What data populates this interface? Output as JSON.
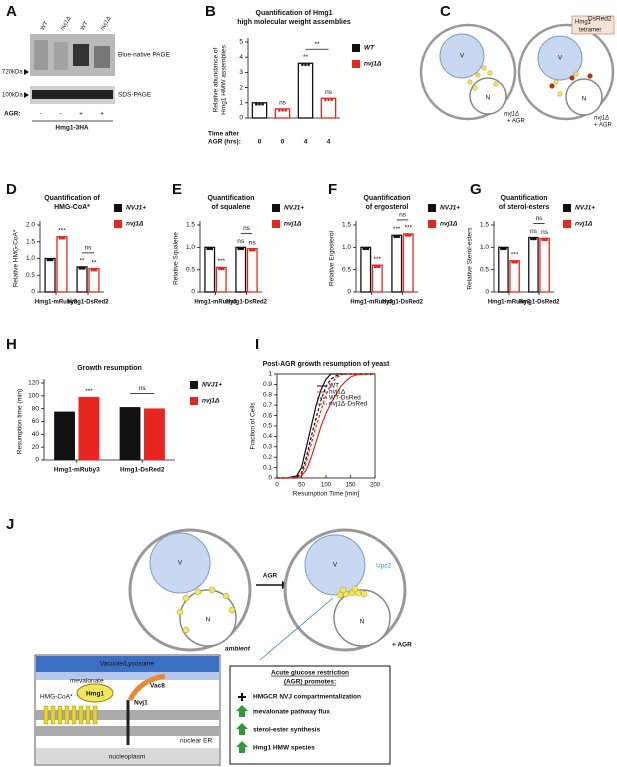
{
  "panels": [
    "A",
    "B",
    "C",
    "D",
    "E",
    "F",
    "G",
    "H",
    "I",
    "J"
  ],
  "blot": {
    "lanes": [
      "WT",
      "nvj1Δ",
      "WT",
      "nvj1Δ"
    ],
    "gels": [
      "Blue-native PAGE",
      "SDS-PAGE"
    ],
    "markers": [
      "720kDa",
      "100kDa"
    ],
    "agr_label": "AGR:",
    "agr": [
      "-",
      "-",
      "+",
      "+"
    ],
    "construct": "Hmg1-3HA"
  },
  "diagram_c": {
    "left": {
      "vacuole": "V",
      "nucleus": "N",
      "strain": "nvj1Δ",
      "condition": "+ AGR"
    },
    "right": {
      "vacuole": "V",
      "nucleus": "N",
      "callout": {
        "name": "Hmg1",
        "superscript": "DsRed2",
        "line2": "tetramer"
      },
      "strain": "nvj1Δ",
      "condition": "+ AGR"
    }
  },
  "diagram_j": {
    "left": {
      "vacuole": "V",
      "nucleus": "N",
      "label": "ambient"
    },
    "arrow": "AGR",
    "right": {
      "vacuole": "V",
      "nucleus": "N",
      "upc2": "Upc2",
      "condition": "+ AGR"
    },
    "inset": {
      "top": "Vacuole/Lysosome",
      "mevalonate": "mevalonate",
      "hmgcoa": "HMG-CoA*",
      "hmg1": "Hmg1",
      "vac8": "Vac8",
      "nvj1": "Nvj1",
      "er": "nuclear ER",
      "nucleoplasm": "nucleoplasm"
    },
    "box": {
      "title": [
        "Acute glucose restriction",
        "(AGR) promotes:"
      ],
      "items": [
        "HMGCR NVJ compartmentalization",
        "mevalonate pathway flux",
        "sterol-ester synthesis",
        "Hmg1 HMW species"
      ]
    }
  },
  "chart_data": [
    {
      "type": "bar",
      "bar_style": "outline",
      "title": [
        "Quantification of Hmg1",
        "high molecular weight assemblies"
      ],
      "ylabel": [
        "Relative abundance of",
        "Hmg1 HMW assemblies"
      ],
      "xlabel": [
        "Time after",
        "AGR (hrs):"
      ],
      "categories": [
        "0",
        "0",
        "4",
        "4"
      ],
      "series": [
        {
          "name": "WT",
          "color": "#111111",
          "values": [
            1.0,
            null,
            3.6,
            null
          ]
        },
        {
          "name": "nvj1Δ",
          "color": "#e8251f",
          "values": [
            null,
            0.6,
            null,
            1.3
          ]
        }
      ],
      "ylim": [
        0,
        5
      ],
      "yticks": [
        0,
        1,
        2,
        3,
        4,
        5
      ],
      "annotations": [
        "ns",
        "**",
        "ns",
        "**"
      ]
    },
    {
      "type": "bar",
      "bar_style": "outline",
      "title": [
        "Quantification of",
        "HMG-CoA*"
      ],
      "ylabel": [
        "Relative HMG-CoA*"
      ],
      "categories": [
        "Hmg1-mRuby3",
        "Hmg1-DsRed2"
      ],
      "series": [
        {
          "name": "NVJ1+",
          "color": "#111111",
          "values": [
            1.0,
            0.75
          ]
        },
        {
          "name": "nvj1Δ",
          "color": "#e8251f",
          "values": [
            1.65,
            0.7
          ]
        }
      ],
      "ylim": [
        0,
        2
      ],
      "yticks": [
        0,
        0.5,
        {
          "value": 1,
          "label": "1.0"
        },
        1.5,
        {
          "value": 2,
          "label": "2.0"
        }
      ],
      "annotations": [
        "***",
        "**",
        "**",
        "ns"
      ]
    },
    {
      "type": "bar",
      "bar_style": "outline",
      "title": [
        "Quantification",
        "of squalene"
      ],
      "ylabel": [
        "Relative Squalene"
      ],
      "categories": [
        "Hmg1-mRuby3",
        "Hmg1-DsRed2"
      ],
      "series": [
        {
          "name": "NVJ1+",
          "color": "#111111",
          "values": [
            1.0,
            1.0
          ]
        },
        {
          "name": "nvj1Δ",
          "color": "#e8251f",
          "values": [
            0.55,
            0.97
          ]
        }
      ],
      "ylim": [
        0,
        1.5
      ],
      "yticks": [
        0,
        0.5,
        {
          "value": 1,
          "label": "1.0"
        },
        1.5
      ],
      "annotations": [
        "***",
        "ns",
        "ns",
        "ns"
      ]
    },
    {
      "type": "bar",
      "bar_style": "outline",
      "title": [
        "Quantification",
        "of ergosterol"
      ],
      "ylabel": [
        "Relative Ergosterol"
      ],
      "categories": [
        "Hmg1-mRuby3",
        "Hmg1-DsRed2"
      ],
      "series": [
        {
          "name": "NVJ1+",
          "color": "#111111",
          "values": [
            1.0,
            1.27
          ]
        },
        {
          "name": "nvj1Δ",
          "color": "#e8251f",
          "values": [
            0.6,
            1.3
          ]
        }
      ],
      "ylim": [
        0,
        1.5
      ],
      "yticks": [
        0,
        0.5,
        {
          "value": 1,
          "label": "1.0"
        },
        1.5
      ],
      "annotations": [
        "***",
        "***",
        "***",
        "ns"
      ]
    },
    {
      "type": "bar",
      "bar_style": "outline",
      "title": [
        "Quantification",
        "of sterol-esters"
      ],
      "ylabel": [
        "Relative Sterol-esters"
      ],
      "categories": [
        "Hmg1-mRuby3",
        "Hmg1-DsRed2"
      ],
      "series": [
        {
          "name": "NVJ1+",
          "color": "#111111",
          "values": [
            1.0,
            1.22
          ]
        },
        {
          "name": "nvj1Δ",
          "color": "#e8251f",
          "values": [
            0.7,
            1.2
          ]
        }
      ],
      "ylim": [
        0,
        1.5
      ],
      "yticks": [
        0,
        0.5,
        {
          "value": 1,
          "label": "1.0"
        },
        1.5
      ],
      "annotations": [
        "***",
        "ns",
        "ns",
        "ns"
      ]
    },
    {
      "type": "bar",
      "bar_style": "filled",
      "title": [
        "Growth resumption"
      ],
      "ylabel": [
        "Resumption time (min)"
      ],
      "categories": [
        "Hmg1-mRuby3",
        "Hmg1-DsRed2"
      ],
      "series": [
        {
          "name": "NVJ1+",
          "color": "#111111",
          "values": [
            75,
            82
          ]
        },
        {
          "name": "nvj1Δ",
          "color": "#e8251f",
          "values": [
            98,
            80
          ]
        }
      ],
      "ylim": [
        0,
        120
      ],
      "yticks": [
        0,
        20,
        40,
        60,
        80,
        100,
        120
      ],
      "annotations": [
        "***",
        "ns"
      ]
    },
    {
      "type": "line",
      "title": [
        "Post-AGR growth resumption of yeast"
      ],
      "xlabel": "Resumption Time [min]",
      "ylabel": [
        "Fraction of Cells"
      ],
      "x": [
        0,
        20,
        40,
        50,
        60,
        70,
        80,
        90,
        100,
        110,
        120,
        130,
        140,
        150,
        160,
        180,
        200
      ],
      "series": [
        {
          "name": "WT",
          "color": "#111111",
          "dash": false,
          "values": [
            0,
            0,
            0.02,
            0.1,
            0.3,
            0.5,
            0.7,
            0.85,
            0.95,
            1,
            1,
            1,
            1,
            1,
            1,
            1,
            1
          ]
        },
        {
          "name": "nvj1Δ",
          "color": "#e8251f",
          "dash": false,
          "values": [
            0,
            0,
            0.01,
            0.02,
            0.08,
            0.2,
            0.35,
            0.5,
            0.62,
            0.72,
            0.8,
            0.88,
            0.93,
            0.97,
            0.99,
            1,
            1
          ]
        },
        {
          "name": "WT-DsRed",
          "color": "#111111",
          "dash": true,
          "values": [
            0,
            0,
            0.01,
            0.05,
            0.2,
            0.4,
            0.58,
            0.75,
            0.88,
            0.95,
            0.98,
            1,
            1,
            1,
            1,
            1,
            1
          ]
        },
        {
          "name": "nvj1Δ-DsRed",
          "color": "#e8251f",
          "dash": true,
          "values": [
            0,
            0,
            0,
            0.03,
            0.15,
            0.33,
            0.5,
            0.65,
            0.8,
            0.9,
            0.96,
            0.99,
            1,
            1,
            1,
            1,
            1
          ]
        }
      ],
      "xlim": [
        0,
        200
      ],
      "xticks": [
        0,
        50,
        100,
        150,
        200
      ],
      "ylim": [
        0,
        1
      ],
      "yticks": [
        0,
        0.1,
        0.2,
        0.3,
        0.4,
        0.5,
        0.6,
        0.7,
        0.8,
        0.9,
        1
      ]
    }
  ]
}
